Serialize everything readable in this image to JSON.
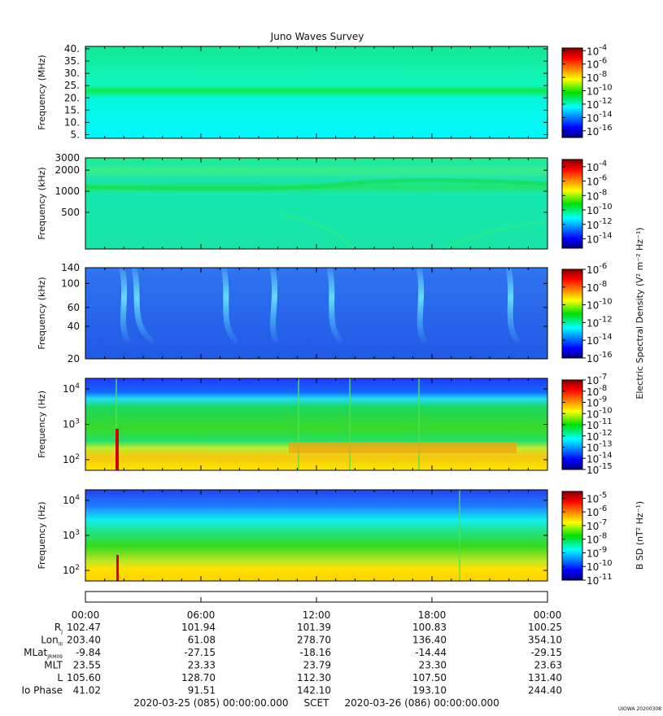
{
  "title": "Juno Waves Survey",
  "footer_stamp": "UIOWA 20200308",
  "chart_data": [
    {
      "type": "heatmap",
      "ylabel": "Frequency (MHz)",
      "yscale": "linear",
      "ylim": [
        3.5,
        41
      ],
      "yticks": [
        "40.",
        "35.",
        "30.",
        "25.",
        "20.",
        "15.",
        "10.",
        "5."
      ],
      "ytick_values": [
        40,
        35,
        30,
        25,
        20,
        15,
        10,
        5
      ],
      "colorbar": {
        "label": "",
        "ticks": [
          "-4",
          "-6",
          "-8",
          "-10",
          "-12",
          "-14",
          "-16"
        ],
        "tick_values": [
          -4,
          -6,
          -8,
          -10,
          -12,
          -14,
          -16
        ],
        "range": [
          -17,
          -3.6
        ]
      }
    },
    {
      "type": "heatmap",
      "ylabel": "Frequency (kHz)",
      "yscale": "log",
      "ylim": [
        150,
        3000
      ],
      "yticks": [
        "3000",
        "2000",
        "1000",
        "500"
      ],
      "ytick_values": [
        3000,
        2000,
        1000,
        500
      ],
      "colorbar": {
        "label": "",
        "ticks": [
          "-4",
          "-6",
          "-8",
          "-10",
          "-12",
          "-14"
        ],
        "tick_values": [
          -4,
          -6,
          -8,
          -10,
          -12,
          -14
        ],
        "range": [
          -15.3,
          -3
        ]
      }
    },
    {
      "type": "heatmap",
      "ylabel": "Frequency (kHz)",
      "yscale": "log",
      "ylim": [
        20,
        140
      ],
      "yticks": [
        "140",
        "100",
        "60",
        "40",
        "20"
      ],
      "ytick_values": [
        140,
        100,
        60,
        40,
        20
      ],
      "colorbar": {
        "label": "Electric Spectral Density (V² m⁻² Hz⁻¹)",
        "ticks": [
          "-6",
          "-8",
          "-10",
          "-12",
          "-14",
          "-16"
        ],
        "tick_values": [
          -6,
          -8,
          -10,
          -12,
          -14,
          -16
        ],
        "range": [
          -16,
          -6
        ]
      }
    },
    {
      "type": "heatmap",
      "ylabel": "Frequency (Hz)",
      "yscale": "log",
      "ylim": [
        50,
        20000
      ],
      "yticks": [
        "4",
        "3",
        "2"
      ],
      "ytick_values": [
        10000,
        1000,
        100
      ],
      "colorbar": {
        "label": "",
        "ticks": [
          "-7",
          "-8",
          "-9",
          "-10",
          "-11",
          "-12",
          "-13",
          "-14",
          "-15"
        ],
        "tick_values": [
          -7,
          -8,
          -9,
          -10,
          -11,
          -12,
          -13,
          -14,
          -15
        ],
        "range": [
          -15,
          -7
        ]
      }
    },
    {
      "type": "heatmap",
      "ylabel": "Frequency (Hz)",
      "yscale": "log",
      "ylim": [
        50,
        20000
      ],
      "yticks": [
        "4",
        "3",
        "2"
      ],
      "ytick_values": [
        10000,
        1000,
        100
      ],
      "colorbar": {
        "label": "B SD (nT² Hz⁻¹)",
        "ticks": [
          "-5",
          "-6",
          "-7",
          "-8",
          "-9",
          "-10",
          "-11"
        ],
        "tick_values": [
          -5,
          -6,
          -7,
          -8,
          -9,
          -10,
          -11
        ],
        "range": [
          -11,
          -4.5
        ]
      }
    }
  ],
  "ephemeris": {
    "time_labels": [
      "00:00",
      "06:00",
      "12:00",
      "18:00",
      "00:00"
    ],
    "rows": [
      {
        "label": "R",
        "sub": "J",
        "values": [
          "102.47",
          "101.94",
          "101.39",
          "100.83",
          "100.25"
        ]
      },
      {
        "label": "Lon",
        "sub": "III",
        "values": [
          "203.40",
          "61.08",
          "278.70",
          "136.40",
          "354.10"
        ]
      },
      {
        "label": "MLat",
        "sub": "JRM09",
        "values": [
          "-9.84",
          "-27.15",
          "-18.16",
          "-14.44",
          "-29.15"
        ]
      },
      {
        "label": "MLT",
        "sub": "",
        "values": [
          "23.55",
          "23.33",
          "23.79",
          "23.30",
          "23.63"
        ]
      },
      {
        "label": "L",
        "sub": "",
        "values": [
          "105.60",
          "128.70",
          "112.30",
          "107.50",
          "131.40"
        ]
      },
      {
        "label": "Io Phase",
        "sub": "",
        "values": [
          "41.02",
          "91.51",
          "142.10",
          "193.10",
          "244.40"
        ]
      }
    ],
    "span": "2020-03-25 (085) 00:00:00.000     SCET     2020-03-26 (086) 00:00:00.000"
  }
}
